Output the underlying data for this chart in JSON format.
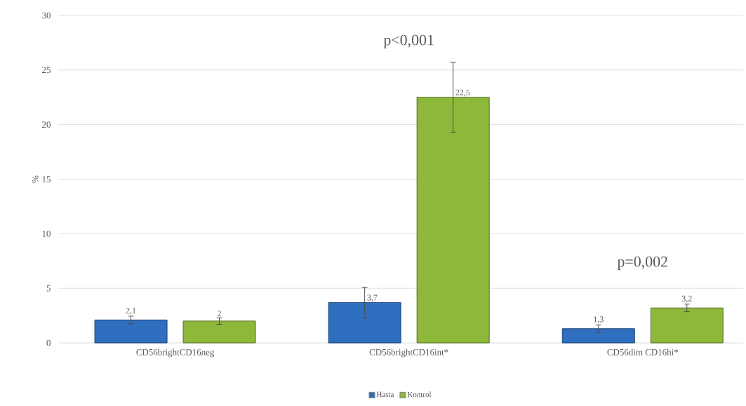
{
  "chart_data": {
    "type": "bar",
    "ylabel": "%",
    "categories": [
      "CD56brightCD16neg",
      "CD56brightCD16int*",
      "CD56dim CD16hi*"
    ],
    "series": [
      {
        "name": "Hasta",
        "color": "#2e6fc0",
        "values": [
          2.1,
          3.7,
          1.3
        ],
        "errors": [
          0.35,
          1.4,
          0.35
        ],
        "value_labels": [
          "2,1",
          "3,7",
          "1,3"
        ]
      },
      {
        "name": "Kontrol",
        "color": "#8db83a",
        "values": [
          2,
          22.5,
          3.2
        ],
        "errors": [
          0.3,
          3.2,
          0.35
        ],
        "value_labels": [
          "2",
          "22,5",
          "3,2"
        ]
      }
    ],
    "annotations": [
      "p<0,001",
      "p=0,002"
    ],
    "ylim": [
      0,
      30
    ],
    "yticks": [
      0,
      5,
      10,
      15,
      20,
      25,
      30
    ],
    "grid": "y",
    "legend": "bottom"
  }
}
